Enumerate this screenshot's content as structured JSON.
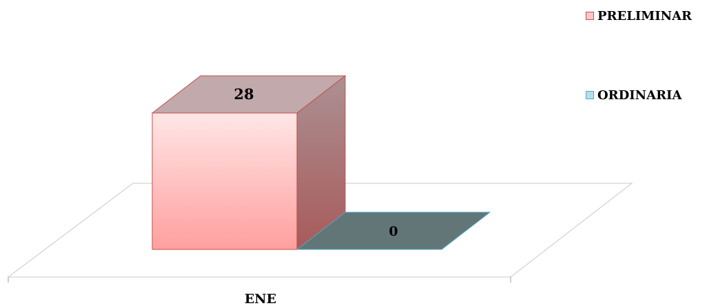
{
  "chart_data": {
    "type": "bar",
    "categories": [
      "ENE"
    ],
    "series": [
      {
        "name": "PRELIMINAR",
        "values": [
          28
        ],
        "color": "#ff9a9a"
      },
      {
        "name": "ORDINARIA",
        "values": [
          0
        ],
        "color": "#4bacc6"
      }
    ],
    "title": "",
    "xlabel": "",
    "ylabel": "",
    "ylim": [
      0,
      28
    ],
    "grid": false,
    "legend_position": "top-right",
    "style": "3d-column"
  },
  "legend": {
    "items": [
      {
        "label": "PRELIMINAR",
        "fill": "#ffc7c7",
        "border": "#c0504d"
      },
      {
        "label": "ORDINARIA",
        "fill": "#b7dee8",
        "border": "#4bacc6"
      }
    ]
  }
}
